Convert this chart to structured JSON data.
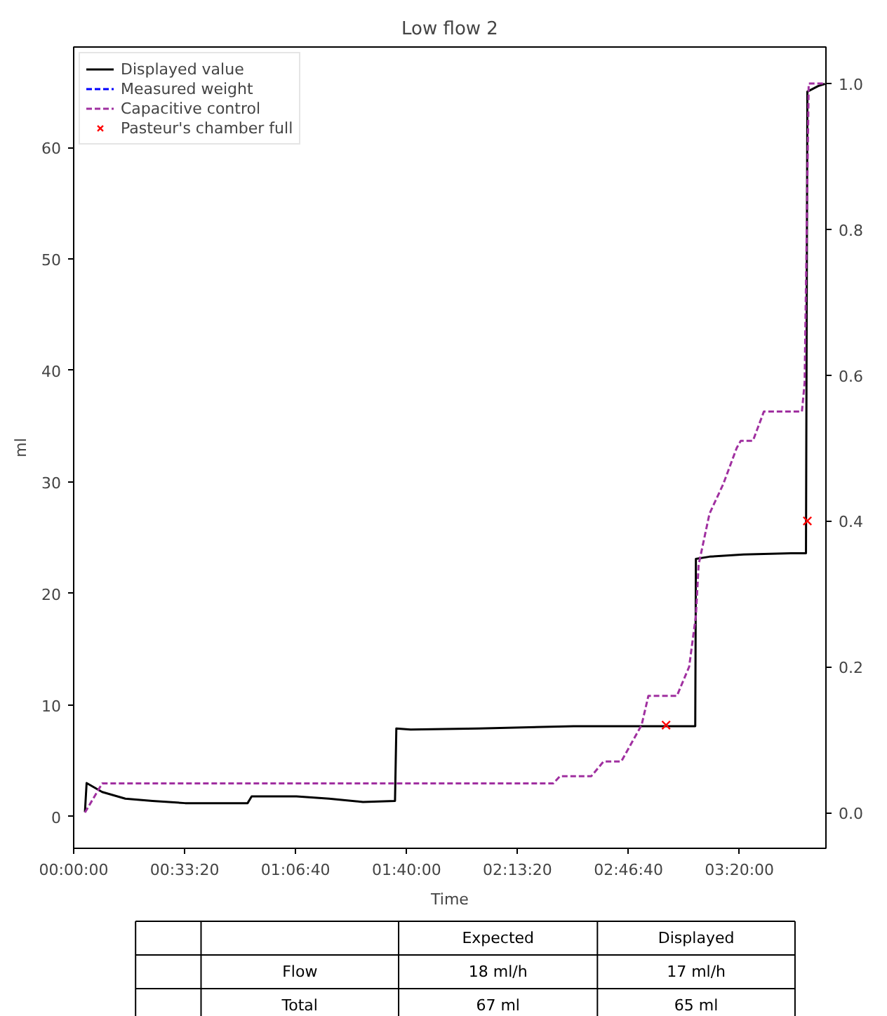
{
  "chart_data": {
    "type": "line",
    "title": "Low flow 2",
    "xlabel": "Time",
    "ylabel": "ml",
    "xlim": [
      0,
      13560
    ],
    "ylim": [
      -2.85,
      69
    ],
    "y2lim": [
      -0.049,
      1.05
    ],
    "xticks": [
      {
        "value": 0,
        "label": "00:00:00"
      },
      {
        "value": 2000,
        "label": "00:33:20"
      },
      {
        "value": 4000,
        "label": "01:06:40"
      },
      {
        "value": 6000,
        "label": "01:40:00"
      },
      {
        "value": 8000,
        "label": "02:13:20"
      },
      {
        "value": 10000,
        "label": "02:46:40"
      },
      {
        "value": 12000,
        "label": "03:20:00"
      }
    ],
    "yticks": [
      0,
      10,
      20,
      30,
      40,
      50,
      60
    ],
    "y2ticks": [
      {
        "value": 0,
        "label": "0.0"
      },
      0.2,
      0.4,
      0.6,
      0.8,
      {
        "value": 1,
        "label": "1.0"
      }
    ],
    "grid": false,
    "legend": "top left",
    "series": [
      {
        "name": "Displayed value",
        "color": "#000000",
        "line_style": "solid",
        "x": [
          203,
          233,
          514,
          931,
          1420,
          2008,
          2600,
          3135,
          3208,
          4016,
          4604,
          5216,
          5792,
          5816,
          6074,
          7298,
          9012,
          10237,
          11204,
          11216,
          11461,
          12074,
          12931,
          13200,
          13225,
          13420,
          13543
        ],
        "values": [
          0.4,
          3.0,
          2.2,
          1.6,
          1.4,
          1.2,
          1.2,
          1.2,
          1.8,
          1.8,
          1.6,
          1.3,
          1.4,
          7.9,
          7.8,
          7.9,
          8.1,
          8.1,
          8.1,
          23.1,
          23.3,
          23.5,
          23.6,
          23.6,
          65.0,
          65.5,
          65.7
        ]
      },
      {
        "name": "Measured weight",
        "color": "#0000ff",
        "line_style": "dashed"
      },
      {
        "name": "Capacitive control",
        "color": "#a030a0",
        "line_style": "dashed",
        "axis": "y2",
        "x": [
          203,
          514,
          8645,
          8767,
          9331,
          9551,
          9870,
          10237,
          10359,
          10873,
          11094,
          11216,
          11265,
          11461,
          11706,
          11951,
          12025,
          12245,
          12441,
          13127,
          13176,
          13249,
          13543
        ],
        "values": [
          0.0,
          0.04,
          0.04,
          0.05,
          0.05,
          0.07,
          0.07,
          0.12,
          0.16,
          0.16,
          0.2,
          0.27,
          0.34,
          0.41,
          0.45,
          0.5,
          0.51,
          0.51,
          0.55,
          0.55,
          0.59,
          1.0,
          1.0
        ]
      },
      {
        "name": "Pasteur's chamber full",
        "type": "scatter",
        "color": "#ff0000",
        "marker": "cross",
        "axis": "y2",
        "x": [
          10678,
          13225
        ],
        "values": [
          0.12,
          0.4
        ]
      }
    ],
    "annotations": [
      "Expected",
      "Displayed",
      "Flow",
      "18 ml/h",
      "17 ml/h",
      "Total",
      "67 ml",
      "65 ml"
    ]
  }
}
